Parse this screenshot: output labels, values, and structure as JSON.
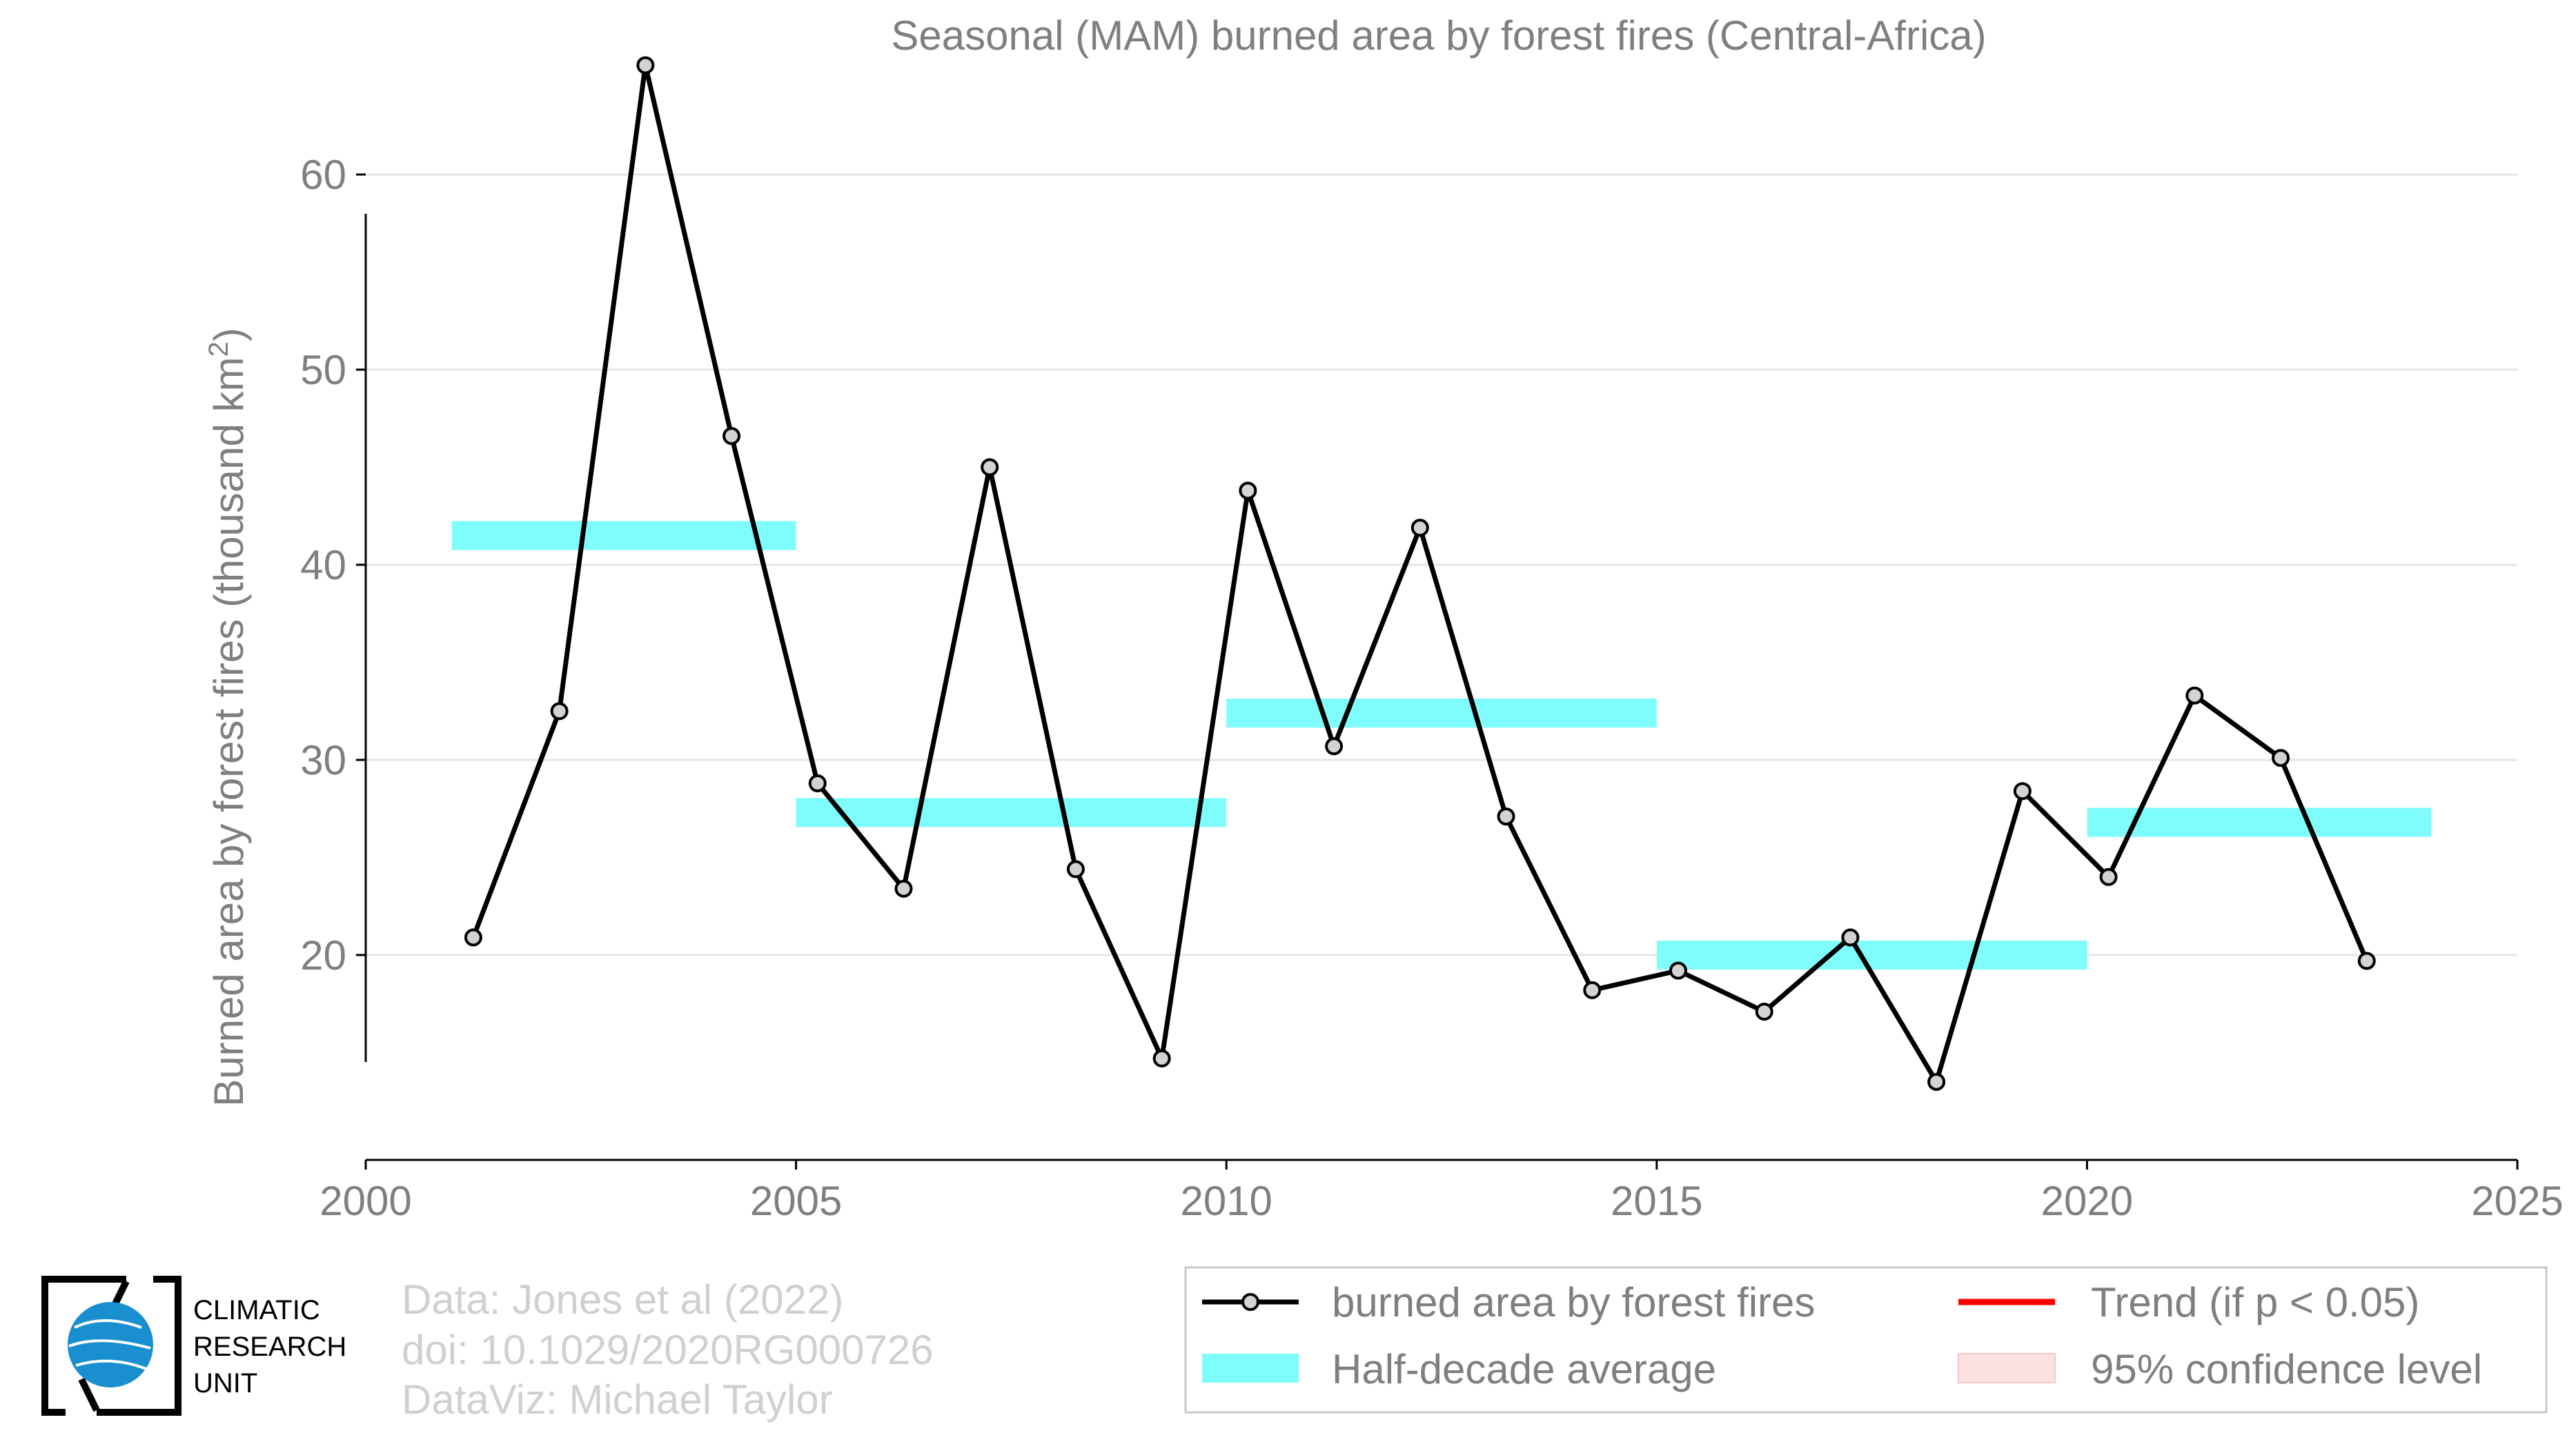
{
  "chart_data": {
    "type": "line",
    "title": "Seasonal (MAM) burned area by forest fires (Central-Africa)",
    "ylabel_main": "Burned area by forest fires (thousand km",
    "ylabel_sup": "2",
    "ylabel_close": ")",
    "xlim": [
      2000,
      2025
    ],
    "ylim": [
      9.5,
      67
    ],
    "x_ticks": [
      2000,
      2005,
      2010,
      2015,
      2020,
      2025
    ],
    "y_ticks": [
      20,
      30,
      40,
      50,
      60
    ],
    "grid": "horizontal",
    "series": [
      {
        "name": "burned area by forest fires",
        "color": "#000000",
        "marker_fill": "#d3d3d3",
        "x": [
          2001.25,
          2002.25,
          2003.25,
          2004.25,
          2005.25,
          2006.25,
          2007.25,
          2008.25,
          2009.25,
          2010.25,
          2011.25,
          2012.25,
          2013.25,
          2014.25,
          2015.25,
          2016.25,
          2017.25,
          2018.25,
          2019.25,
          2020.25,
          2021.25,
          2022.25,
          2023.25
        ],
        "y": [
          20.9,
          32.5,
          65.6,
          46.6,
          28.8,
          23.4,
          45.0,
          24.4,
          14.7,
          43.8,
          30.7,
          41.9,
          27.1,
          18.2,
          19.2,
          17.1,
          20.9,
          13.5,
          28.4,
          24.0,
          33.3,
          30.1,
          19.7
        ]
      }
    ],
    "half_decade_average": {
      "name": "Half-decade average",
      "color": "#7ffcfc",
      "segments": [
        {
          "x0": 2001,
          "x1": 2005,
          "y": 41.5
        },
        {
          "x0": 2005,
          "x1": 2010,
          "y": 27.3
        },
        {
          "x0": 2010,
          "x1": 2015,
          "y": 32.4
        },
        {
          "x0": 2015,
          "x1": 2020,
          "y": 20.0
        },
        {
          "x0": 2020,
          "x1": 2024,
          "y": 26.8
        }
      ]
    },
    "legend": {
      "placement": "bottom-right",
      "items": [
        {
          "label": "burned area by forest fires",
          "kind": "line-marker",
          "color": "#000000"
        },
        {
          "label": "Trend (if p < 0.05)",
          "kind": "line",
          "color": "#ff0000"
        },
        {
          "label": "Half-decade average",
          "kind": "band",
          "color": "#7ffcfc"
        },
        {
          "label": "95% confidence level",
          "kind": "band",
          "color": "#fde0e0"
        }
      ]
    }
  },
  "logo": {
    "line1": "CLIMATIC",
    "line2": "RESEARCH",
    "line3": "UNIT"
  },
  "credits": {
    "line1": "Data: Jones et al (2022)",
    "line2": "doi: 10.1029/2020RG000726",
    "line3": "DataViz: Michael Taylor"
  },
  "colors": {
    "axis_text": "#7f7f7f",
    "credit_text": "#d0d0d0",
    "grid": "#e6e6e6",
    "logo_globe": "#1a8fd0"
  }
}
